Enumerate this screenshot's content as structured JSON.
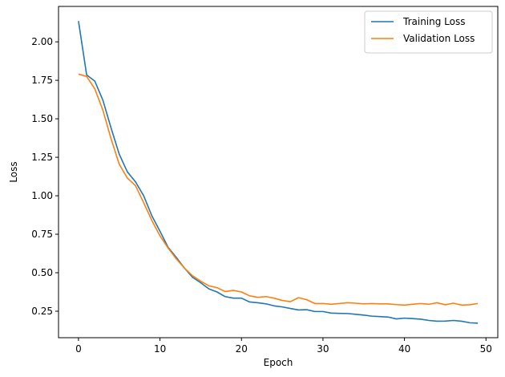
{
  "chart_data": {
    "type": "line",
    "title": "",
    "xlabel": "Epoch",
    "ylabel": "Loss",
    "xlim": [
      -2.45,
      51.45
    ],
    "ylim": [
      0.078,
      2.23
    ],
    "xticks": [
      0,
      10,
      20,
      30,
      40,
      50
    ],
    "xtick_labels": [
      "0",
      "10",
      "20",
      "30",
      "40",
      "50"
    ],
    "yticks": [
      0.25,
      0.5,
      0.75,
      1.0,
      1.25,
      1.5,
      1.75,
      2.0
    ],
    "ytick_labels": [
      "0.25",
      "0.50",
      "0.75",
      "1.00",
      "1.25",
      "1.50",
      "1.75",
      "2.00"
    ],
    "grid": false,
    "legend_position": "top-right",
    "x": [
      0,
      1,
      2,
      3,
      4,
      5,
      6,
      7,
      8,
      9,
      10,
      11,
      12,
      13,
      14,
      15,
      16,
      17,
      18,
      19,
      20,
      21,
      22,
      23,
      24,
      25,
      26,
      27,
      28,
      29,
      30,
      31,
      32,
      33,
      34,
      35,
      36,
      37,
      38,
      39,
      40,
      41,
      42,
      43,
      44,
      45,
      46,
      47,
      48,
      49
    ],
    "series": [
      {
        "name": "Training Loss",
        "color": "#1f77b4",
        "values": [
          2.135,
          1.785,
          1.745,
          1.62,
          1.44,
          1.27,
          1.155,
          1.09,
          1.0,
          0.87,
          0.77,
          0.665,
          0.6,
          0.53,
          0.47,
          0.435,
          0.395,
          0.375,
          0.345,
          0.335,
          0.335,
          0.31,
          0.305,
          0.298,
          0.285,
          0.278,
          0.268,
          0.258,
          0.26,
          0.248,
          0.248,
          0.238,
          0.236,
          0.235,
          0.23,
          0.225,
          0.218,
          0.215,
          0.212,
          0.2,
          0.205,
          0.202,
          0.198,
          0.19,
          0.185,
          0.186,
          0.19,
          0.185,
          0.175,
          0.172
        ]
      },
      {
        "name": "Validation Loss",
        "color": "#ff7f0e",
        "values": [
          1.79,
          1.775,
          1.695,
          1.555,
          1.37,
          1.205,
          1.115,
          1.065,
          0.955,
          0.84,
          0.74,
          0.66,
          0.59,
          0.53,
          0.48,
          0.445,
          0.415,
          0.403,
          0.378,
          0.385,
          0.375,
          0.35,
          0.34,
          0.345,
          0.335,
          0.32,
          0.312,
          0.338,
          0.325,
          0.3,
          0.3,
          0.295,
          0.3,
          0.305,
          0.302,
          0.298,
          0.3,
          0.298,
          0.298,
          0.293,
          0.29,
          0.295,
          0.3,
          0.295,
          0.305,
          0.292,
          0.302,
          0.29,
          0.292,
          0.3
        ]
      }
    ]
  }
}
